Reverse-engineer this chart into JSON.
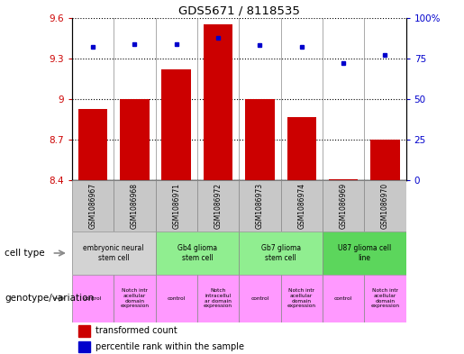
{
  "title": "GDS5671 / 8118535",
  "samples": [
    "GSM1086967",
    "GSM1086968",
    "GSM1086971",
    "GSM1086972",
    "GSM1086973",
    "GSM1086974",
    "GSM1086969",
    "GSM1086970"
  ],
  "red_values": [
    8.93,
    9.0,
    9.22,
    9.55,
    9.0,
    8.87,
    8.41,
    8.7
  ],
  "blue_values": [
    0.82,
    0.835,
    0.835,
    0.875,
    0.83,
    0.82,
    0.72,
    0.77
  ],
  "ylim_left": [
    8.4,
    9.6
  ],
  "ylim_right": [
    0,
    1.0
  ],
  "yticks_left": [
    8.4,
    8.7,
    9.0,
    9.3,
    9.6
  ],
  "ytick_labels_left": [
    "8.4",
    "8.7",
    "9",
    "9.3",
    "9.6"
  ],
  "yticks_right": [
    0.0,
    0.25,
    0.5,
    0.75,
    1.0
  ],
  "ytick_labels_right": [
    "0",
    "25",
    "50",
    "75",
    "100%"
  ],
  "bar_bottom": 8.4,
  "cell_types": [
    {
      "label": "embryonic neural\nstem cell",
      "start": 0,
      "end": 2,
      "color": "#d3d3d3"
    },
    {
      "label": "Gb4 glioma\nstem cell",
      "start": 2,
      "end": 4,
      "color": "#90ee90"
    },
    {
      "label": "Gb7 glioma\nstem cell",
      "start": 4,
      "end": 6,
      "color": "#90ee90"
    },
    {
      "label": "U87 glioma cell\nline",
      "start": 6,
      "end": 8,
      "color": "#5cd65c"
    }
  ],
  "genotypes": [
    {
      "label": "control",
      "start": 0,
      "end": 1
    },
    {
      "label": "Notch intr\nacellular\ndomain\nexpression",
      "start": 1,
      "end": 2
    },
    {
      "label": "control",
      "start": 2,
      "end": 3
    },
    {
      "label": "Notch\nintracellul\nar domain\nexpression",
      "start": 3,
      "end": 4
    },
    {
      "label": "control",
      "start": 4,
      "end": 5
    },
    {
      "label": "Notch intr\nacellular\ndomain\nexpression",
      "start": 5,
      "end": 6
    },
    {
      "label": "control",
      "start": 6,
      "end": 7
    },
    {
      "label": "Notch intr\nacellular\ndomain\nexpression",
      "start": 7,
      "end": 8
    }
  ],
  "genotype_color": "#ff99ff",
  "bar_color": "#cc0000",
  "dot_color": "#0000cc",
  "sample_bg_color": "#c8c8c8",
  "cell_type_label": "cell type",
  "genotype_label": "genotype/variation",
  "legend_red": "transformed count",
  "legend_blue": "percentile rank within the sample"
}
